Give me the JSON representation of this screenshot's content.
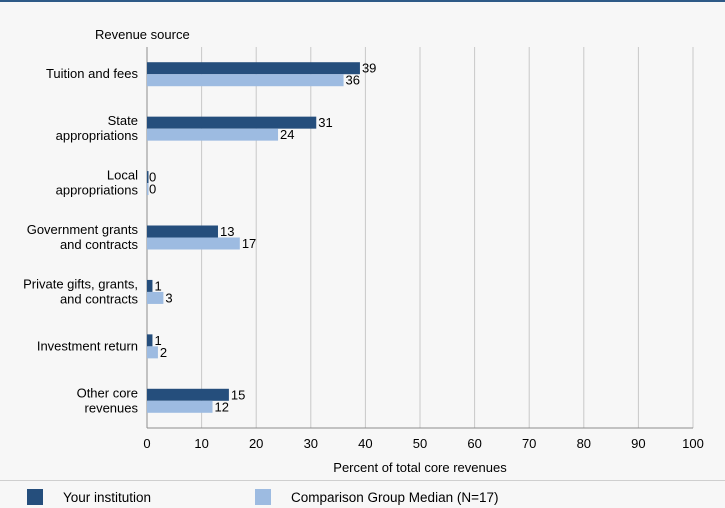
{
  "chart_data": {
    "type": "bar",
    "orientation": "horizontal",
    "category_axis_title": "Revenue source",
    "categories": [
      [
        "Tuition and fees"
      ],
      [
        "State",
        "appropriations"
      ],
      [
        "Local",
        "appropriations"
      ],
      [
        "Government grants",
        "and contracts"
      ],
      [
        "Private gifts, grants,",
        "and contracts"
      ],
      [
        "Investment return"
      ],
      [
        "Other core",
        "revenues"
      ]
    ],
    "series": [
      {
        "name": "Your institution",
        "color": "#254e7c",
        "values": [
          39,
          31,
          0,
          13,
          1,
          1,
          15
        ]
      },
      {
        "name": "Comparison Group Median (N=17)",
        "color": "#9dbbe1",
        "values": [
          36,
          24,
          0,
          17,
          3,
          2,
          12
        ]
      }
    ],
    "data_labels": [
      [
        "39",
        "31",
        "0",
        "13",
        "1",
        "1",
        "15"
      ],
      [
        "36",
        "24",
        "0",
        "17",
        "3",
        "2",
        "12"
      ]
    ],
    "xlabel": "Percent of total core revenues",
    "xlim": [
      0,
      100
    ],
    "xticks": [
      "0",
      "10",
      "20",
      "30",
      "40",
      "50",
      "60",
      "70",
      "80",
      "90",
      "100"
    ],
    "grid": true,
    "legend_position": "bottom"
  }
}
